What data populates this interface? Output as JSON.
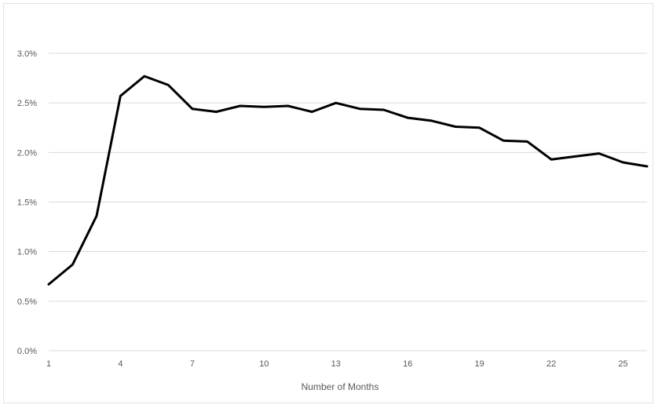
{
  "chart_data": {
    "type": "line",
    "title": "",
    "xlabel": "Number of Months",
    "ylabel": "",
    "xlim": [
      1,
      26
    ],
    "ylim": [
      0,
      0.03
    ],
    "grid": true,
    "legend": "none",
    "x_ticks": [
      "1",
      "4",
      "7",
      "10",
      "13",
      "16",
      "19",
      "22",
      "25"
    ],
    "y_ticks": [
      "0.0%",
      "0.5%",
      "1.0%",
      "1.5%",
      "2.0%",
      "2.5%",
      "3.0%"
    ],
    "line_color": "#000000",
    "grid_color": "#d9d9d9",
    "series": [
      {
        "x": [
          1,
          2,
          3,
          4,
          5,
          6,
          7,
          8,
          9,
          10,
          11,
          12,
          13,
          14,
          15,
          16,
          17,
          18,
          19,
          20,
          21,
          22,
          23,
          24,
          25,
          26
        ],
        "values": [
          0.0067,
          0.0087,
          0.0136,
          0.0257,
          0.0277,
          0.0268,
          0.0244,
          0.0241,
          0.0247,
          0.0246,
          0.0247,
          0.0241,
          0.025,
          0.0244,
          0.0243,
          0.0235,
          0.0232,
          0.0226,
          0.0225,
          0.0212,
          0.0211,
          0.0193,
          0.0196,
          0.0199,
          0.019,
          0.0186
        ]
      }
    ]
  }
}
